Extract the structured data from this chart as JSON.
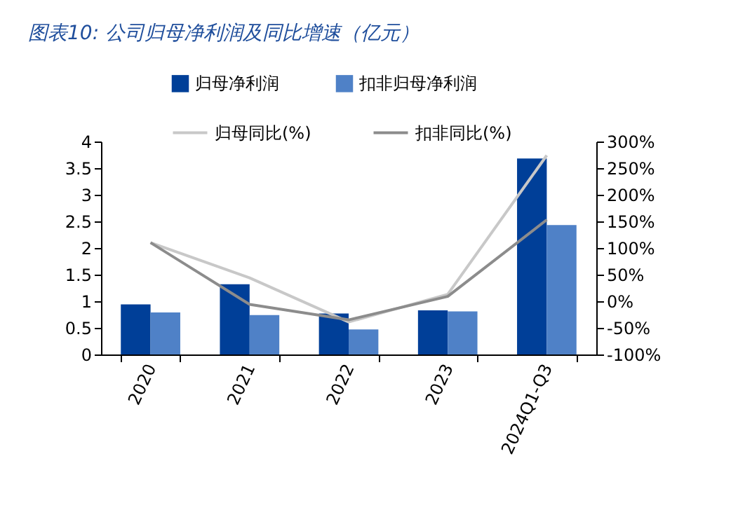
{
  "chart_data": {
    "type": "bar",
    "title": "图表10:  公司归母净利润及同比增速（亿元）",
    "categories": [
      "2020",
      "2021",
      "2022",
      "2023",
      "2024Q1-Q3"
    ],
    "series": [
      {
        "name": "归母净利润",
        "type": "bar",
        "color": "#003f98",
        "values": [
          0.94,
          1.32,
          0.77,
          0.83,
          3.68
        ]
      },
      {
        "name": "扣非归母净利润",
        "type": "bar",
        "color": "#4f81c7",
        "values": [
          0.79,
          0.74,
          0.47,
          0.81,
          2.43
        ]
      },
      {
        "name": "归母同比(%)",
        "type": "line",
        "axis": "y2",
        "color": "#c8c8c8",
        "values": [
          110,
          44,
          -39,
          13,
          274
        ]
      },
      {
        "name": "扣非同比(%)",
        "type": "line",
        "axis": "y2",
        "color": "#8c8c8c",
        "values": [
          110,
          -6,
          -35,
          9,
          153
        ]
      }
    ],
    "ylim": [
      0,
      4
    ],
    "yticks": [
      0,
      0.5,
      1,
      1.5,
      2,
      2.5,
      3,
      3.5,
      4
    ],
    "y2lim": [
      -100,
      300
    ],
    "y2ticks": [
      {
        "value": -100,
        "label": "-100%"
      },
      {
        "value": -50,
        "label": "-50%"
      },
      {
        "value": 0,
        "label": "0%"
      },
      {
        "value": 50,
        "label": "50%"
      },
      {
        "value": 100,
        "label": "100%"
      },
      {
        "value": 150,
        "label": "150%"
      },
      {
        "value": 200,
        "label": "200%"
      },
      {
        "value": 250,
        "label": "250%"
      },
      {
        "value": 300,
        "label": "300%"
      }
    ],
    "grid": false,
    "legend": "top",
    "marker": "none",
    "line_style": "solid"
  }
}
